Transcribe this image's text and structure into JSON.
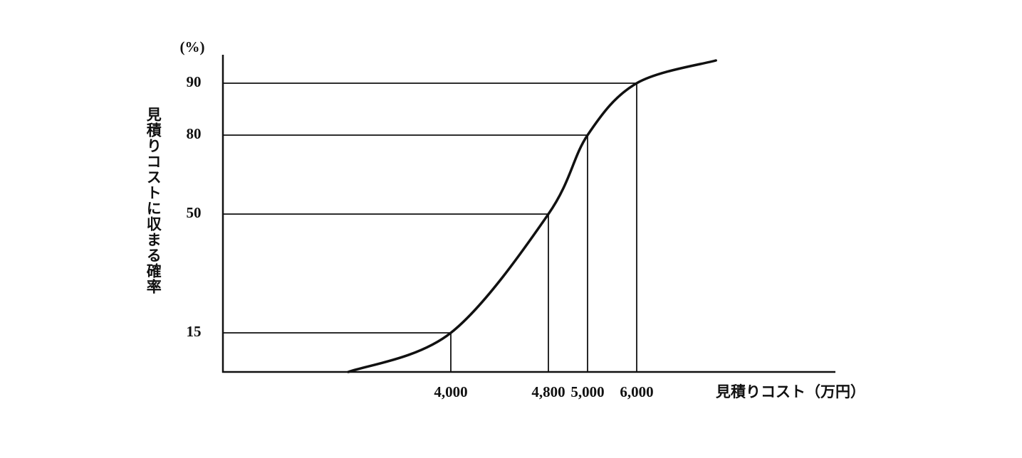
{
  "chart_data": {
    "type": "line",
    "y_unit": "(%)",
    "ylabel": "見積りコストに収まる確率",
    "xlabel": "見積りコスト（万円）",
    "x": [
      3550,
      4000,
      4800,
      5000,
      6000,
      6400
    ],
    "values": [
      0,
      15,
      50,
      80,
      90,
      98
    ],
    "color": "#111111",
    "xlim": [
      3000,
      7000
    ],
    "ylim": [
      0,
      100
    ],
    "xticks": [
      {
        "value": 4000,
        "label": "4,000"
      },
      {
        "value": 4800,
        "label": "4,800"
      },
      {
        "value": 5000,
        "label": "5,000"
      },
      {
        "value": 6000,
        "label": "6,000"
      }
    ],
    "yticks": [
      15,
      50,
      80,
      90
    ]
  }
}
